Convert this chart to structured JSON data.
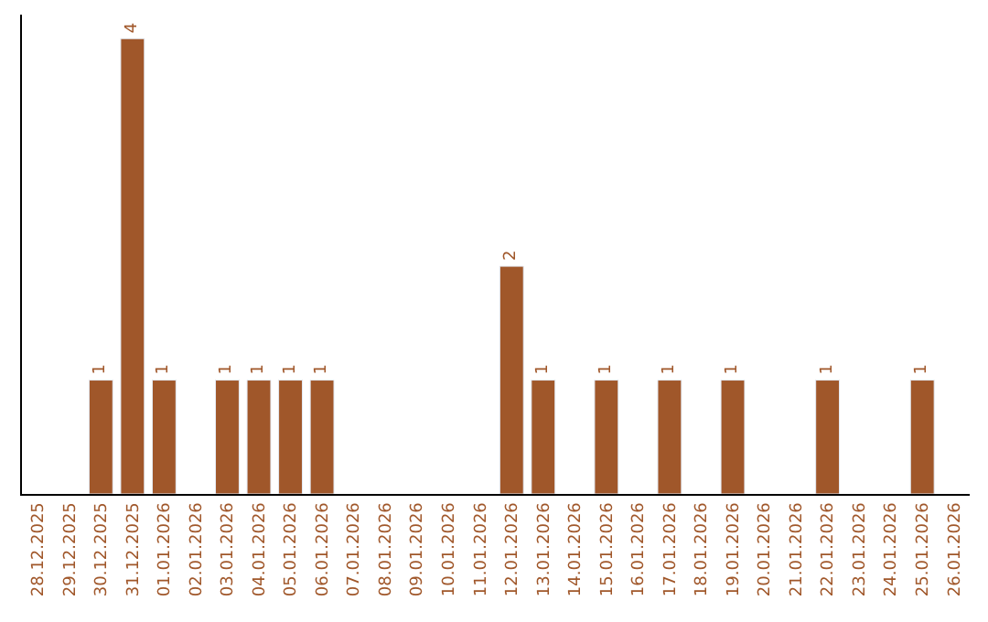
{
  "chart_data": {
    "type": "bar",
    "categories": [
      "28.12.2025",
      "29.12.2025",
      "30.12.2025",
      "31.12.2025",
      "01.01.2026",
      "02.01.2026",
      "03.01.2026",
      "04.01.2026",
      "05.01.2026",
      "06.01.2026",
      "07.01.2026",
      "08.01.2026",
      "09.01.2026",
      "10.01.2026",
      "11.01.2026",
      "12.01.2026",
      "13.01.2026",
      "14.01.2026",
      "15.01.2026",
      "16.01.2026",
      "17.01.2026",
      "18.01.2026",
      "19.01.2026",
      "20.01.2026",
      "21.01.2026",
      "22.01.2026",
      "23.01.2026",
      "24.01.2026",
      "25.01.2026",
      "26.01.2026"
    ],
    "values": [
      null,
      null,
      1,
      4,
      1,
      null,
      1,
      1,
      1,
      1,
      null,
      null,
      null,
      null,
      null,
      2,
      1,
      null,
      1,
      null,
      1,
      null,
      1,
      null,
      null,
      1,
      null,
      null,
      1,
      null
    ],
    "color": "#a0572a",
    "data_labels": true,
    "tick_labels": "x",
    "legend": false
  }
}
